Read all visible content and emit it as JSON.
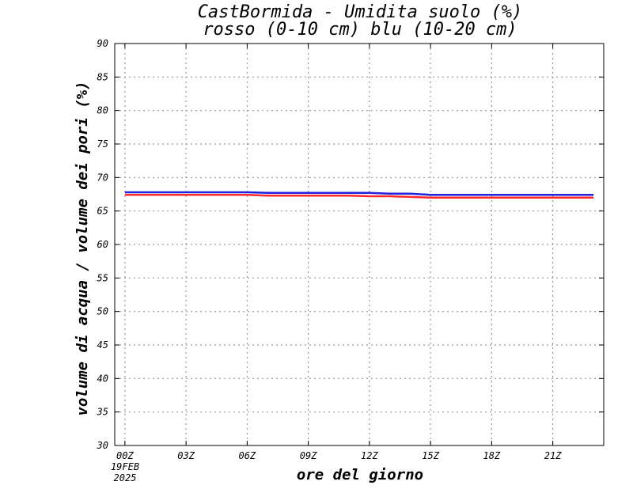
{
  "chart_data": {
    "type": "line",
    "title": "CastBormida - Umidita suolo (%)",
    "subtitle": "rosso (0-10 cm) blu (10-20 cm)",
    "xlabel": "ore del giorno",
    "ylabel": "volume di acqua / volume dei pori (%)",
    "ylim": [
      30,
      90
    ],
    "yticks": [
      30,
      35,
      40,
      45,
      50,
      55,
      60,
      65,
      70,
      75,
      80,
      85,
      90
    ],
    "xlim": [
      -0.5,
      23.5
    ],
    "xticks": [
      {
        "hour": 0,
        "label": "00Z"
      },
      {
        "hour": 3,
        "label": "03Z"
      },
      {
        "hour": 6,
        "label": "06Z"
      },
      {
        "hour": 9,
        "label": "09Z"
      },
      {
        "hour": 12,
        "label": "12Z"
      },
      {
        "hour": 15,
        "label": "15Z"
      },
      {
        "hour": 18,
        "label": "18Z"
      },
      {
        "hour": 21,
        "label": "21Z"
      }
    ],
    "date_label": [
      "19FEB",
      "2025"
    ],
    "grid": true,
    "colors": {
      "red": "#ff2a2a",
      "blue": "#2222dd"
    },
    "series": [
      {
        "color": "red",
        "x": [
          0,
          1,
          2,
          3,
          4,
          5,
          6,
          7,
          8,
          9,
          10,
          11,
          12,
          13,
          14,
          15,
          16,
          17,
          18,
          19,
          20,
          21,
          22,
          23
        ],
        "values": [
          67.4,
          67.4,
          67.4,
          67.4,
          67.4,
          67.4,
          67.4,
          67.3,
          67.3,
          67.3,
          67.3,
          67.3,
          67.2,
          67.2,
          67.1,
          67.0,
          67.0,
          67.0,
          67.0,
          67.0,
          67.0,
          67.0,
          67.0,
          67.0
        ]
      },
      {
        "color": "blue",
        "x": [
          0,
          1,
          2,
          3,
          4,
          5,
          6,
          7,
          8,
          9,
          10,
          11,
          12,
          13,
          14,
          15,
          16,
          17,
          18,
          19,
          20,
          21,
          22,
          23
        ],
        "values": [
          67.8,
          67.8,
          67.8,
          67.8,
          67.8,
          67.8,
          67.8,
          67.7,
          67.7,
          67.7,
          67.7,
          67.7,
          67.7,
          67.6,
          67.6,
          67.4,
          67.4,
          67.4,
          67.4,
          67.4,
          67.4,
          67.4,
          67.4,
          67.4
        ]
      }
    ]
  }
}
